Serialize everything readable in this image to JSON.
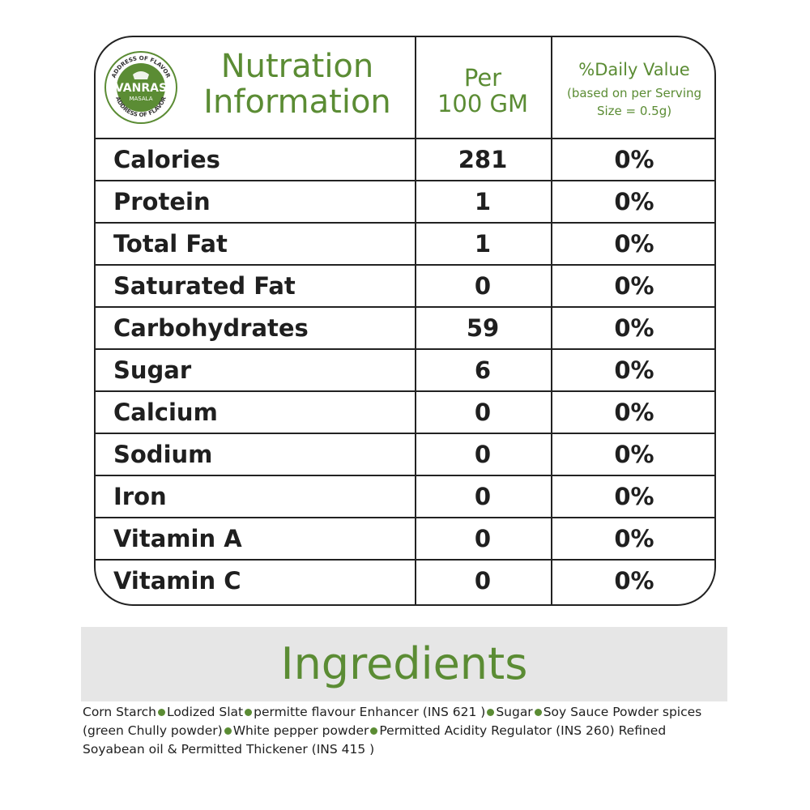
{
  "brand": {
    "name": "VANRAS",
    "sub": "MASALA",
    "ring_text": "ADDRESS OF FLAVOR"
  },
  "table": {
    "title_line1": "Nutration",
    "title_line2": "Information",
    "per_line1": "Per",
    "per_line2": "100 GM",
    "dv_title": "%Daily Value",
    "dv_sub_line1": "(based on per Serving",
    "dv_sub_line2": "Size = 0.5g)",
    "rows": [
      {
        "name": "Calories",
        "value": "281",
        "dv": "0%"
      },
      {
        "name": "Protein",
        "value": "1",
        "dv": "0%"
      },
      {
        "name": "Total Fat",
        "value": "1",
        "dv": "0%"
      },
      {
        "name": "Saturated Fat",
        "value": "0",
        "dv": "0%"
      },
      {
        "name": "Carbohydrates",
        "value": "59",
        "dv": "0%"
      },
      {
        "name": "Sugar",
        "value": "6",
        "dv": "0%"
      },
      {
        "name": "Calcium",
        "value": "0",
        "dv": "0%"
      },
      {
        "name": "Sodium",
        "value": "0",
        "dv": "0%"
      },
      {
        "name": "Iron",
        "value": "0",
        "dv": "0%"
      },
      {
        "name": "Vitamin A",
        "value": "0",
        "dv": "0%"
      },
      {
        "name": "Vitamin C",
        "value": "0",
        "dv": "0%"
      }
    ]
  },
  "ingredients": {
    "title": "Ingredients",
    "items": [
      "Corn Starch",
      "Lodized Slat",
      "permitte flavour Enhancer (INS 621 )",
      "Sugar",
      "Soy Sauce Powder spices (green Chully powder)",
      "White pepper powder",
      "Permitted Acidity Regulator (INS 260) Refined Soyabean oil & Permitted Thickener (INS 415 )"
    ]
  },
  "colors": {
    "accent_green": "#5b8c34",
    "border": "#222222",
    "band_gray": "#e6e6e6"
  }
}
